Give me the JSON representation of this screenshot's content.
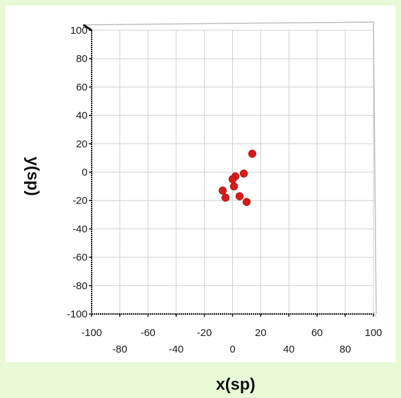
{
  "chart_data": {
    "type": "scatter",
    "title": "",
    "xlabel": "x(sp)",
    "ylabel": "y(sp)",
    "xlim": [
      -100,
      100
    ],
    "ylim": [
      -100,
      100
    ],
    "grid": true,
    "x_ticks": [
      "-100",
      "-80",
      "-60",
      "-40",
      "-20",
      "0",
      "20",
      "40",
      "60",
      "80",
      "100"
    ],
    "y_ticks": [
      "100",
      "80",
      "60",
      "40",
      "20",
      "0",
      "-20",
      "-40",
      "-60",
      "-80",
      "-100"
    ],
    "colors": {
      "points": "#d51b1b",
      "grid": "#cfcfcf",
      "axis": "#111111",
      "background": "#e9f9d6"
    },
    "series": [
      {
        "x": [
          14,
          8,
          2,
          0,
          1,
          -7,
          -5,
          5,
          10
        ],
        "y": [
          13,
          -1,
          -3,
          -5,
          -10,
          -13,
          -18,
          -17,
          -21
        ]
      }
    ]
  }
}
